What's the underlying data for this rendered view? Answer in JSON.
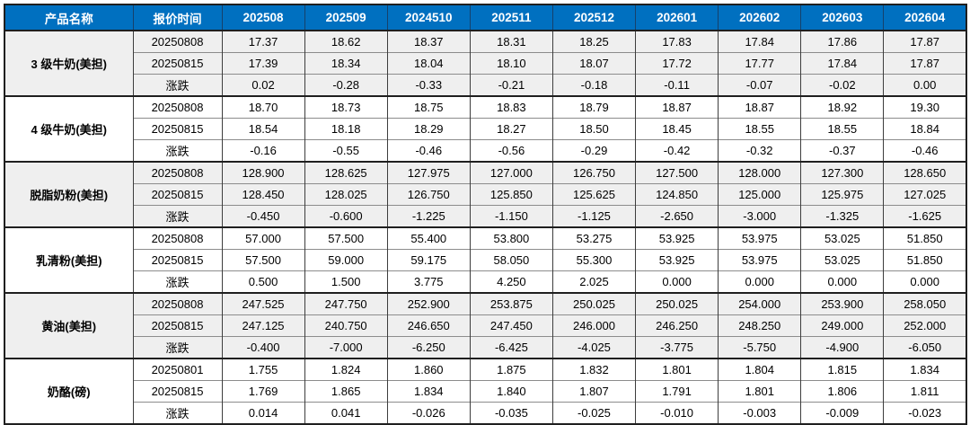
{
  "table": {
    "columns": [
      "产品名称",
      "报价时间",
      "202508",
      "202509",
      "2024510",
      "202511",
      "202512",
      "202601",
      "202602",
      "202603",
      "202604"
    ],
    "groups": [
      {
        "product": "3 级牛奶(美担)",
        "rows": [
          {
            "label": "20250808",
            "type": "price",
            "values": [
              "17.37",
              "18.62",
              "18.37",
              "18.31",
              "18.25",
              "17.83",
              "17.84",
              "17.86",
              "17.87"
            ]
          },
          {
            "label": "20250815",
            "type": "price",
            "values": [
              "17.39",
              "18.34",
              "18.04",
              "18.10",
              "18.07",
              "17.72",
              "17.77",
              "17.84",
              "17.87"
            ]
          },
          {
            "label": "涨跌",
            "type": "change",
            "values": [
              "0.02",
              "-0.28",
              "-0.33",
              "-0.21",
              "-0.18",
              "-0.11",
              "-0.07",
              "-0.02",
              "0.00"
            ]
          }
        ]
      },
      {
        "product": "4 级牛奶(美担)",
        "rows": [
          {
            "label": "20250808",
            "type": "price",
            "values": [
              "18.70",
              "18.73",
              "18.75",
              "18.83",
              "18.79",
              "18.87",
              "18.87",
              "18.92",
              "19.30"
            ]
          },
          {
            "label": "20250815",
            "type": "price",
            "values": [
              "18.54",
              "18.18",
              "18.29",
              "18.27",
              "18.50",
              "18.45",
              "18.55",
              "18.55",
              "18.84"
            ]
          },
          {
            "label": "涨跌",
            "type": "change",
            "values": [
              "-0.16",
              "-0.55",
              "-0.46",
              "-0.56",
              "-0.29",
              "-0.42",
              "-0.32",
              "-0.37",
              "-0.46"
            ]
          }
        ]
      },
      {
        "product": "脱脂奶粉(美担)",
        "rows": [
          {
            "label": "20250808",
            "type": "price",
            "values": [
              "128.900",
              "128.625",
              "127.975",
              "127.000",
              "126.750",
              "127.500",
              "128.000",
              "127.300",
              "128.650"
            ]
          },
          {
            "label": "20250815",
            "type": "price",
            "values": [
              "128.450",
              "128.025",
              "126.750",
              "125.850",
              "125.625",
              "124.850",
              "125.000",
              "125.975",
              "127.025"
            ]
          },
          {
            "label": "涨跌",
            "type": "change",
            "values": [
              "-0.450",
              "-0.600",
              "-1.225",
              "-1.150",
              "-1.125",
              "-2.650",
              "-3.000",
              "-1.325",
              "-1.625"
            ]
          }
        ]
      },
      {
        "product": "乳清粉(美担)",
        "rows": [
          {
            "label": "20250808",
            "type": "price",
            "values": [
              "57.000",
              "57.500",
              "55.400",
              "53.800",
              "53.275",
              "53.925",
              "53.975",
              "53.025",
              "51.850"
            ]
          },
          {
            "label": "20250815",
            "type": "price",
            "values": [
              "57.500",
              "59.000",
              "59.175",
              "58.050",
              "55.300",
              "53.925",
              "53.975",
              "53.025",
              "51.850"
            ]
          },
          {
            "label": "涨跌",
            "type": "change",
            "values": [
              "0.500",
              "1.500",
              "3.775",
              "4.250",
              "2.025",
              "0.000",
              "0.000",
              "0.000",
              "0.000"
            ]
          }
        ]
      },
      {
        "product": "黄油(美担)",
        "rows": [
          {
            "label": "20250808",
            "type": "price",
            "values": [
              "247.525",
              "247.750",
              "252.900",
              "253.875",
              "250.025",
              "250.025",
              "254.000",
              "253.900",
              "258.050"
            ]
          },
          {
            "label": "20250815",
            "type": "price",
            "values": [
              "247.125",
              "240.750",
              "246.650",
              "247.450",
              "246.000",
              "246.250",
              "248.250",
              "249.000",
              "252.000"
            ]
          },
          {
            "label": "涨跌",
            "type": "change",
            "values": [
              "-0.400",
              "-7.000",
              "-6.250",
              "-6.425",
              "-4.025",
              "-3.775",
              "-5.750",
              "-4.900",
              "-6.050"
            ]
          }
        ]
      },
      {
        "product": "奶酪(磅)",
        "rows": [
          {
            "label": "20250801",
            "type": "price",
            "values": [
              "1.755",
              "1.824",
              "1.860",
              "1.875",
              "1.832",
              "1.801",
              "1.804",
              "1.815",
              "1.834"
            ]
          },
          {
            "label": "20250815",
            "type": "price",
            "values": [
              "1.769",
              "1.865",
              "1.834",
              "1.840",
              "1.807",
              "1.791",
              "1.801",
              "1.806",
              "1.811"
            ]
          },
          {
            "label": "涨跌",
            "type": "change",
            "values": [
              "0.014",
              "0.041",
              "-0.026",
              "-0.035",
              "-0.025",
              "-0.010",
              "-0.003",
              "-0.009",
              "-0.023"
            ]
          }
        ]
      }
    ],
    "colors": {
      "header_bg": "#0070C0",
      "header_text": "#FFFFFF",
      "band_row_bg": "#EFEFEF",
      "plain_row_bg": "#FFFFFF",
      "positive_change_text": "#E60000",
      "negative_change_text": "#00B956",
      "zero_change_text": "#000000",
      "border": "#1F1F1F"
    }
  }
}
